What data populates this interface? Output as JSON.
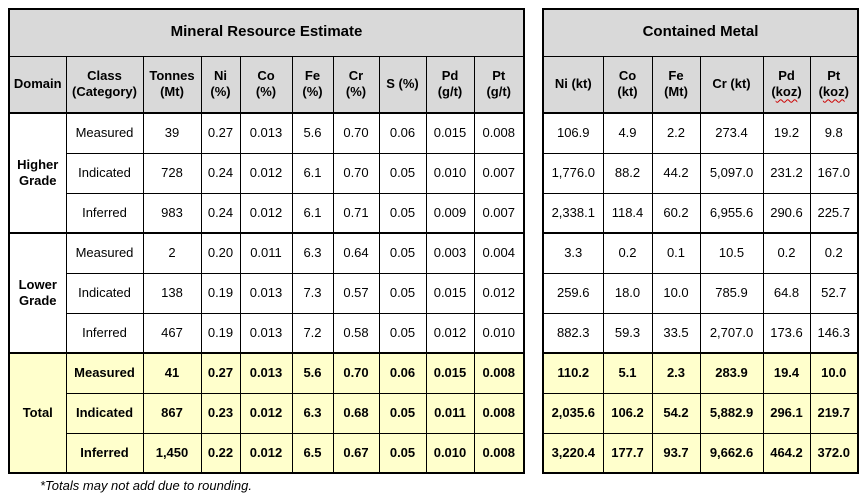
{
  "footnote": "*Totals may not add due to rounding.",
  "colors": {
    "header_bg": "#d9d9d9",
    "total_row_bg": "#ffffcc",
    "border": "#000000",
    "spellcheck_underline": "#cc0000"
  },
  "resource_table": {
    "title": "Mineral Resource Estimate",
    "columns": [
      {
        "id": "domain",
        "line1": "Domain"
      },
      {
        "id": "class-category",
        "line1": "Class",
        "line2": "(Category)"
      },
      {
        "id": "tonnes-mt",
        "line1": "Tonnes",
        "line2": "(Mt)"
      },
      {
        "id": "ni-pct",
        "line1": "Ni",
        "line2": "(%)"
      },
      {
        "id": "co-pct",
        "line1": "Co",
        "line2": "(%)"
      },
      {
        "id": "fe-pct",
        "line1": "Fe",
        "line2": "(%)"
      },
      {
        "id": "cr-pct",
        "line1": "Cr",
        "line2": "(%)"
      },
      {
        "id": "s-pct",
        "line1": "S (%)"
      },
      {
        "id": "pd-gpt",
        "line1": "Pd",
        "line2": "(g/t)"
      },
      {
        "id": "pt-gpt",
        "line1": "Pt",
        "line2": "(g/t)"
      }
    ]
  },
  "metal_table": {
    "title": "Contained Metal",
    "columns": [
      {
        "id": "ni-kt",
        "line1": "Ni (kt)"
      },
      {
        "id": "co-kt",
        "line1": "Co",
        "line2": "(kt)"
      },
      {
        "id": "fe-mt",
        "line1": "Fe",
        "line2": "(Mt)"
      },
      {
        "id": "cr-kt",
        "line1": "Cr (kt)"
      },
      {
        "id": "pd-koz",
        "line1": "Pd",
        "line2_parts": [
          "(",
          "koz",
          ")"
        ],
        "misspelled_part": 1
      },
      {
        "id": "pt-koz",
        "line1": "Pt",
        "line2_parts": [
          "(",
          "koz",
          ")"
        ],
        "misspelled_part": 1
      }
    ]
  },
  "groups": [
    {
      "domain": "Higher Grade",
      "is_total": false,
      "rows": [
        {
          "category": "Measured",
          "resource": [
            "39",
            "0.27",
            "0.013",
            "5.6",
            "0.70",
            "0.06",
            "0.015",
            "0.008"
          ],
          "metal": [
            "106.9",
            "4.9",
            "2.2",
            "273.4",
            "19.2",
            "9.8"
          ]
        },
        {
          "category": "Indicated",
          "resource": [
            "728",
            "0.24",
            "0.012",
            "6.1",
            "0.70",
            "0.05",
            "0.010",
            "0.007"
          ],
          "metal": [
            "1,776.0",
            "88.2",
            "44.2",
            "5,097.0",
            "231.2",
            "167.0"
          ]
        },
        {
          "category": "Inferred",
          "resource": [
            "983",
            "0.24",
            "0.012",
            "6.1",
            "0.71",
            "0.05",
            "0.009",
            "0.007"
          ],
          "metal": [
            "2,338.1",
            "118.4",
            "60.2",
            "6,955.6",
            "290.6",
            "225.7"
          ]
        }
      ]
    },
    {
      "domain": "Lower Grade",
      "is_total": false,
      "rows": [
        {
          "category": "Measured",
          "resource": [
            "2",
            "0.20",
            "0.011",
            "6.3",
            "0.64",
            "0.05",
            "0.003",
            "0.004"
          ],
          "metal": [
            "3.3",
            "0.2",
            "0.1",
            "10.5",
            "0.2",
            "0.2"
          ]
        },
        {
          "category": "Indicated",
          "resource": [
            "138",
            "0.19",
            "0.013",
            "7.3",
            "0.57",
            "0.05",
            "0.015",
            "0.012"
          ],
          "metal": [
            "259.6",
            "18.0",
            "10.0",
            "785.9",
            "64.8",
            "52.7"
          ]
        },
        {
          "category": "Inferred",
          "resource": [
            "467",
            "0.19",
            "0.013",
            "7.2",
            "0.58",
            "0.05",
            "0.012",
            "0.010"
          ],
          "metal": [
            "882.3",
            "59.3",
            "33.5",
            "2,707.0",
            "173.6",
            "146.3"
          ]
        }
      ]
    },
    {
      "domain": "Total",
      "is_total": true,
      "rows": [
        {
          "category": "Measured",
          "resource": [
            "41",
            "0.27",
            "0.013",
            "5.6",
            "0.70",
            "0.06",
            "0.015",
            "0.008"
          ],
          "metal": [
            "110.2",
            "5.1",
            "2.3",
            "283.9",
            "19.4",
            "10.0"
          ]
        },
        {
          "category": "Indicated",
          "resource": [
            "867",
            "0.23",
            "0.012",
            "6.3",
            "0.68",
            "0.05",
            "0.011",
            "0.008"
          ],
          "metal": [
            "2,035.6",
            "106.2",
            "54.2",
            "5,882.9",
            "296.1",
            "219.7"
          ]
        },
        {
          "category": "Inferred",
          "resource": [
            "1,450",
            "0.22",
            "0.012",
            "6.5",
            "0.67",
            "0.05",
            "0.010",
            "0.008"
          ],
          "metal": [
            "3,220.4",
            "177.7",
            "93.7",
            "9,662.6",
            "464.2",
            "372.0"
          ]
        }
      ]
    }
  ]
}
